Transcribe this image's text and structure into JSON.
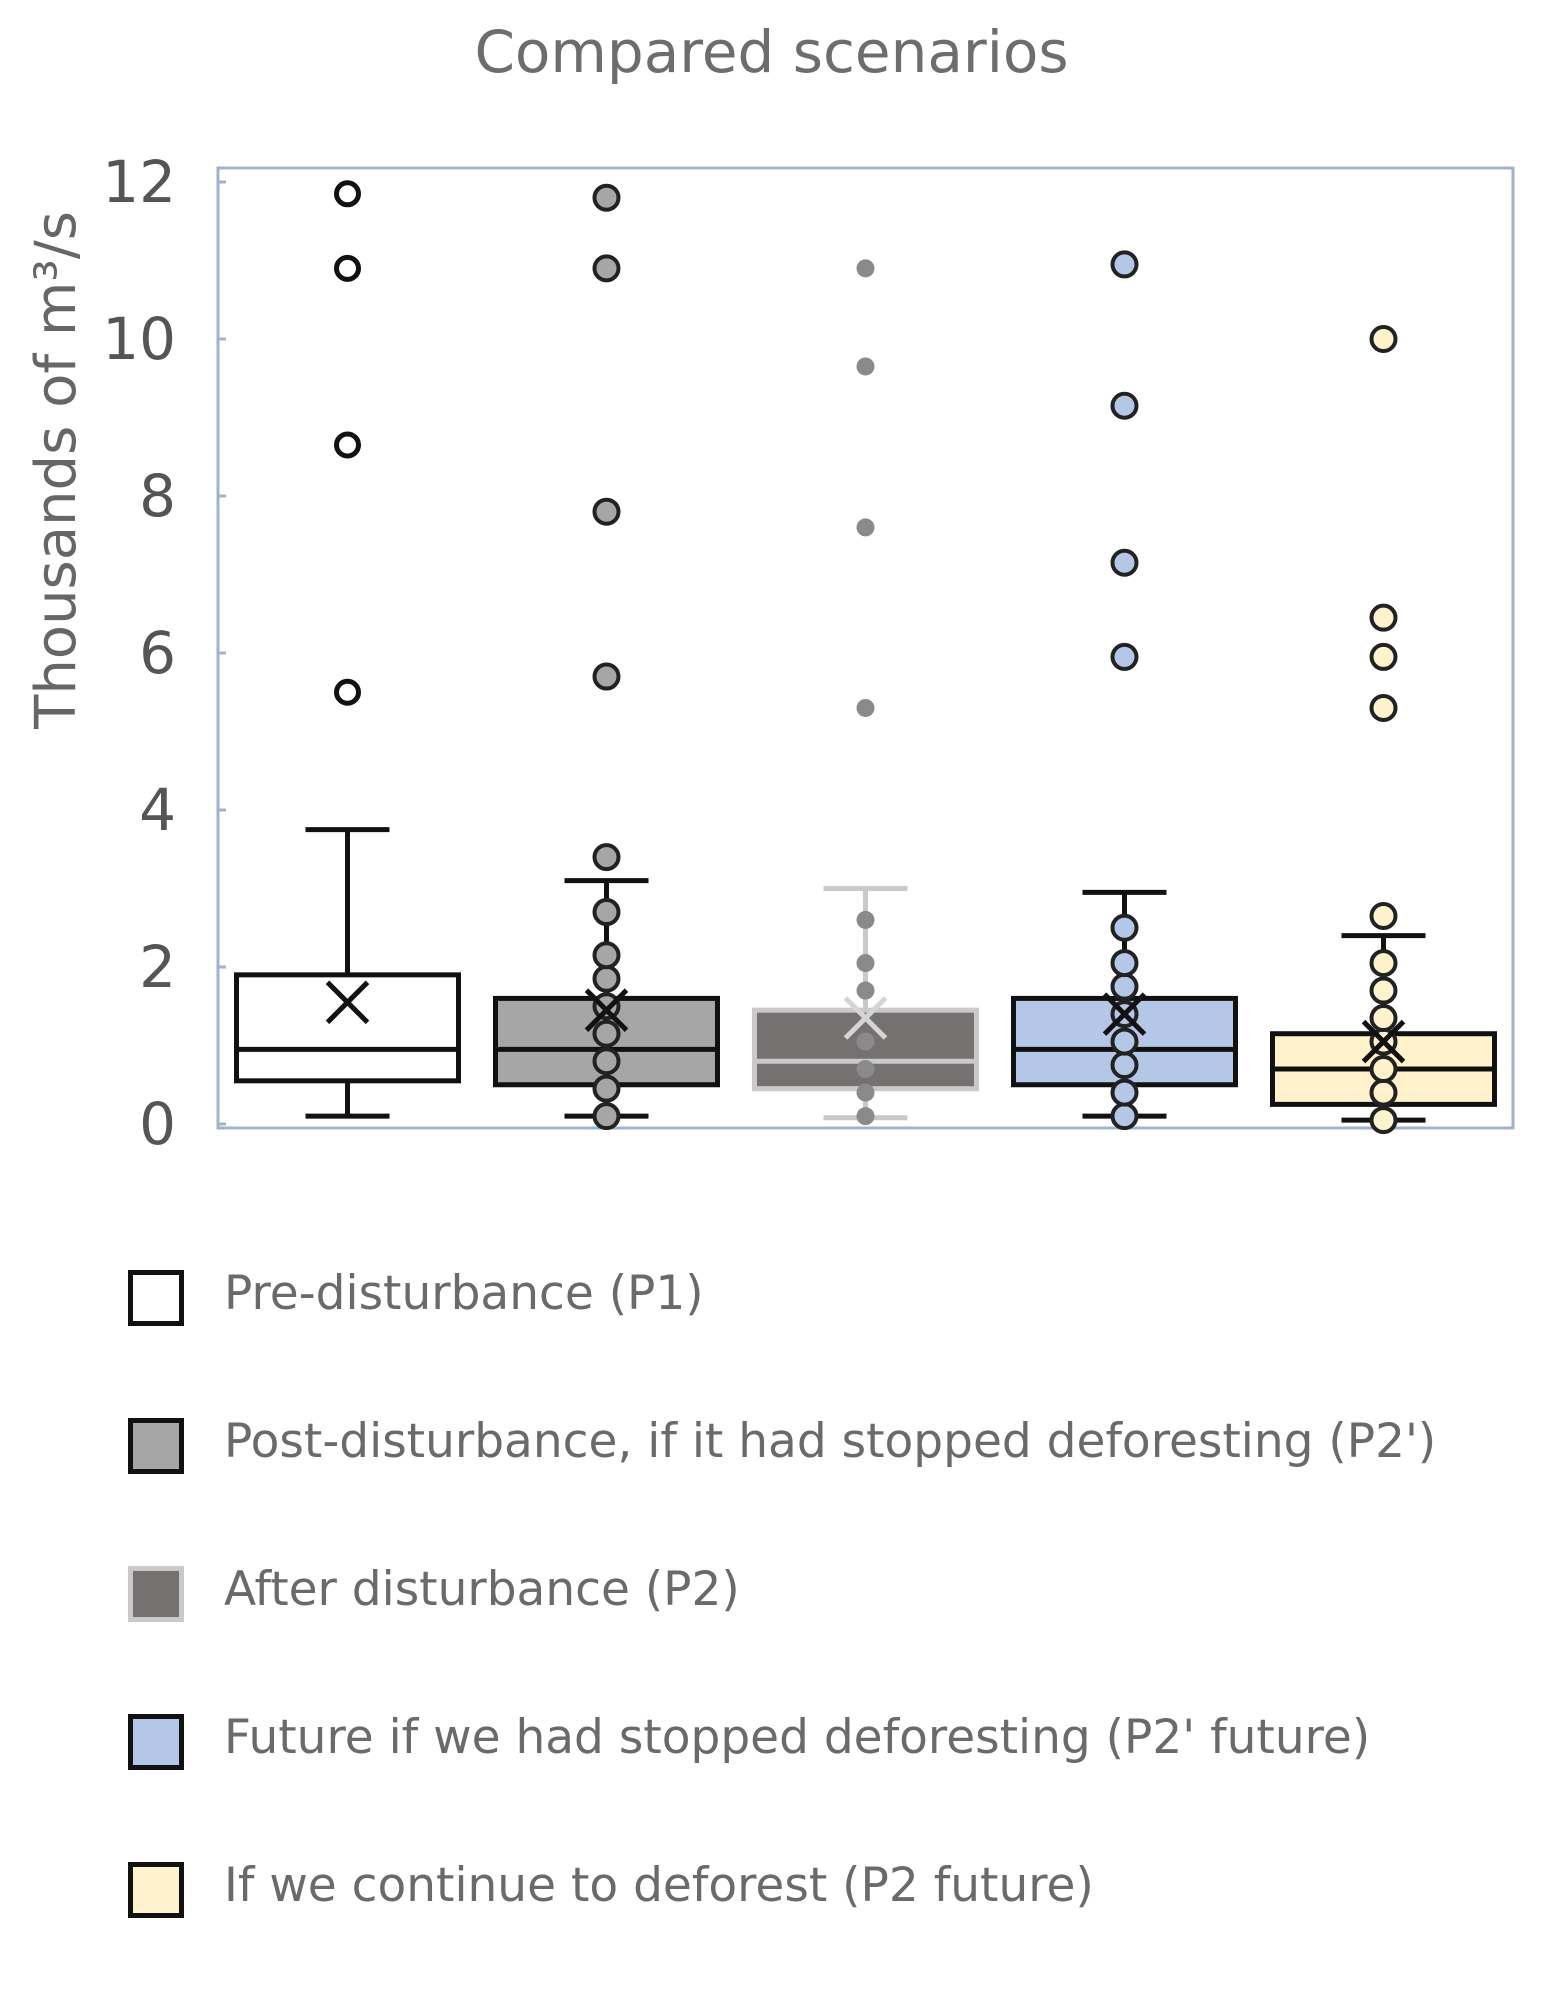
{
  "chart_data": {
    "type": "boxplot",
    "title": "Compared scenarios",
    "ylabel": "Thousands of  m³/s",
    "xlabel": "",
    "ylim": [
      0,
      12
    ],
    "yticks": [
      "0",
      "2",
      "4",
      "6",
      "8",
      "10",
      "12"
    ],
    "series": [
      {
        "name": "Pre-disturbance (P1)",
        "fill": "#ffffff",
        "stroke": "#111111",
        "whisker_low": 0.1,
        "q1": 0.55,
        "median": 0.95,
        "q3": 1.9,
        "whisker_high": 3.75,
        "mean": 1.55,
        "points": [],
        "outliers": [
          5.5,
          8.65,
          10.9,
          11.85
        ],
        "point_style": "hollow"
      },
      {
        "name": "Post-disturbance, if it had stopped deforesting (P2')",
        "fill": "#a6a6a6",
        "stroke": "#111111",
        "whisker_low": 0.1,
        "q1": 0.5,
        "median": 0.95,
        "q3": 1.6,
        "whisker_high": 3.1,
        "mean": 1.45,
        "points": [
          0.1,
          0.45,
          0.8,
          1.15,
          1.5,
          1.85,
          2.15,
          2.7
        ],
        "outliers": [
          3.4,
          5.7,
          7.8,
          10.9,
          11.8
        ],
        "point_style": "filled"
      },
      {
        "name": "After disturbance (P2)",
        "fill": "#757171",
        "stroke": "#c9c9c9",
        "whisker_low": 0.08,
        "q1": 0.45,
        "median": 0.8,
        "q3": 1.45,
        "whisker_high": 3.0,
        "mean": 1.35,
        "points": [
          0.1,
          0.4,
          0.7,
          1.05,
          1.7,
          2.05,
          2.6
        ],
        "outliers": [
          5.3,
          7.6,
          9.65,
          10.9
        ],
        "point_style": "dot"
      },
      {
        "name": "Future if we had stopped deforesting (P2' future)",
        "fill": "#b4c7e7",
        "stroke": "#111111",
        "whisker_low": 0.1,
        "q1": 0.5,
        "median": 0.95,
        "q3": 1.6,
        "whisker_high": 2.95,
        "mean": 1.4,
        "points": [
          0.1,
          0.4,
          0.75,
          1.05,
          1.4,
          1.75,
          2.05,
          2.5
        ],
        "outliers": [
          5.95,
          7.15,
          9.15,
          10.95
        ],
        "point_style": "filled"
      },
      {
        "name": "If we continue to deforest (P2  future)",
        "fill": "#fff2cc",
        "stroke": "#111111",
        "whisker_low": 0.05,
        "q1": 0.25,
        "median": 0.7,
        "q3": 1.15,
        "whisker_high": 2.4,
        "mean": 1.05,
        "points": [
          0.05,
          0.4,
          0.7,
          1.05,
          1.35,
          1.7,
          2.05,
          2.65
        ],
        "outliers": [
          5.3,
          5.95,
          6.45,
          10.0
        ],
        "point_style": "filled"
      }
    ]
  }
}
